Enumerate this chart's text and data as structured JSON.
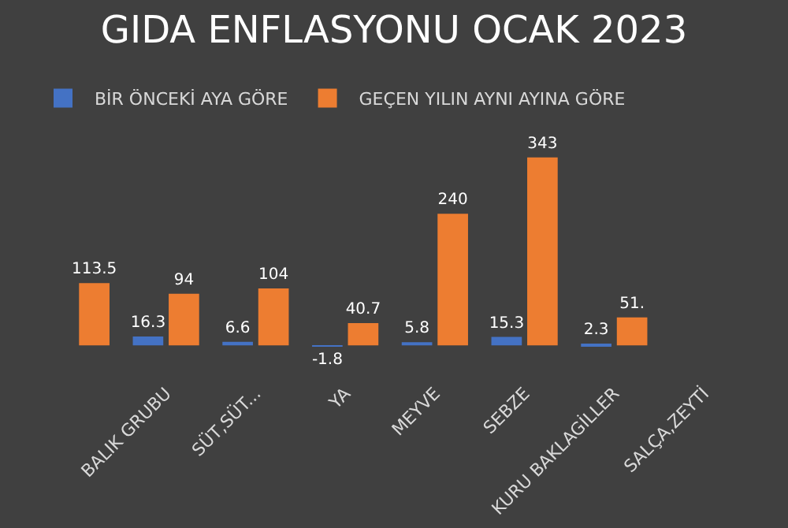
{
  "chart_data": {
    "type": "bar",
    "title": "GIDA ENFLASYONU OCAK 2023",
    "categories": [
      null,
      "BALIK GRUBU",
      "SÜT,SÜT...",
      "YA",
      "MEYVE",
      "SEBZE",
      "KURU BAKLAGİLLER",
      "SALÇA,ZEYTİ"
    ],
    "legend": "top",
    "series": [
      {
        "name": "BİR ÖNCEKİ AYA GÖRE",
        "color": "#4472c4",
        "values": [
          null,
          16.3,
          6.6,
          -1.8,
          5.8,
          15.3,
          2.3,
          null
        ],
        "value_labels": [
          null,
          "16.3",
          "6.6",
          "-1.8",
          "5.8",
          "15.3",
          "2.3",
          null
        ]
      },
      {
        "name": "GEÇEN YILIN AYNI AYINA GÖRE",
        "color": "#ed7d31",
        "values": [
          113.5,
          94,
          104,
          40.7,
          240,
          343,
          51,
          null
        ],
        "value_labels": [
          "113.5",
          "94",
          "104",
          "40.7",
          "240",
          "343",
          "51.",
          null
        ]
      }
    ]
  }
}
